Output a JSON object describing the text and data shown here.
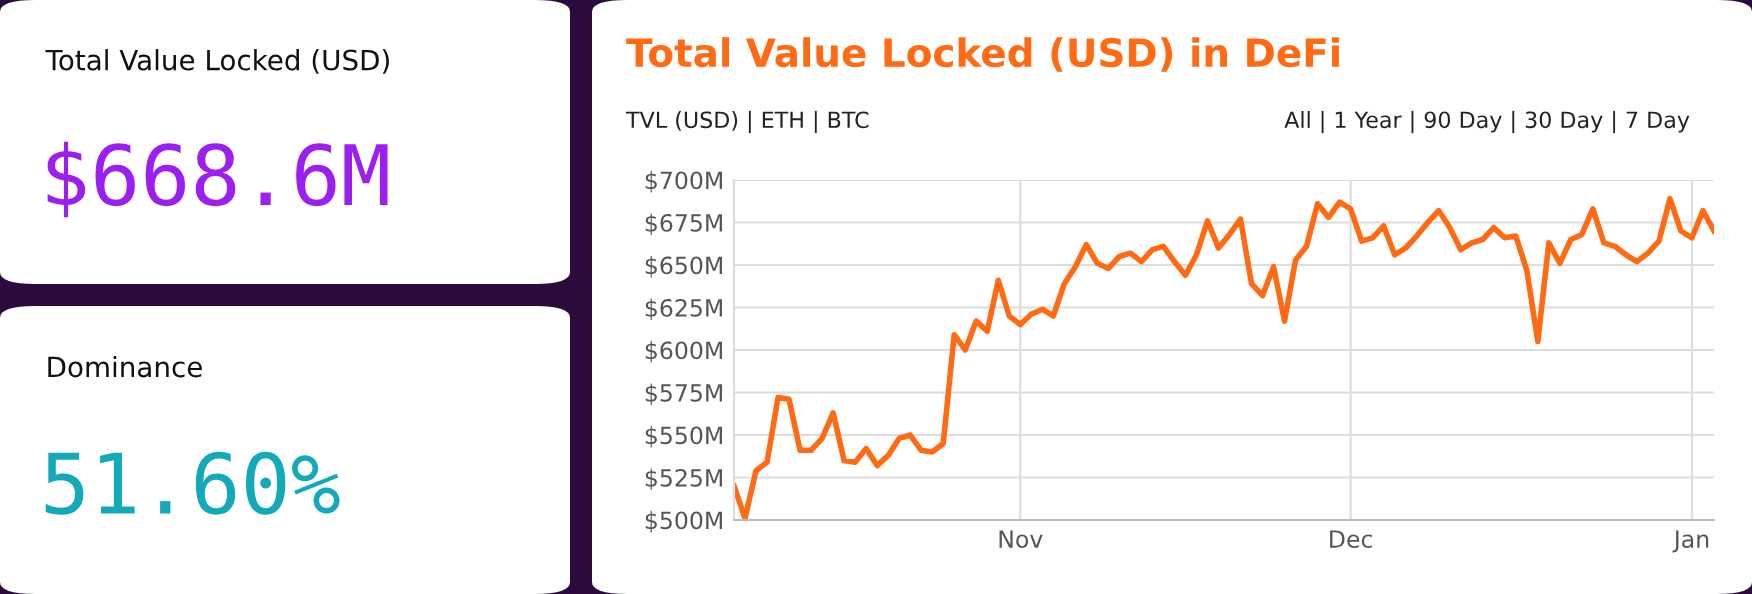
{
  "chart_data": [
    {
      "type": "line",
      "title": "Total Value Locked (USD) in DeFi",
      "annotations": [
        "TVL (USD) | ETH | BTC",
        "All | 1 Year | 90 Day | 30 Day | 7 Day"
      ],
      "categories": [
        null,
        null,
        null,
        null,
        null,
        null,
        null,
        null,
        null,
        null,
        null,
        null,
        null,
        null,
        null,
        null,
        null,
        null,
        null,
        null,
        null,
        null,
        null,
        null,
        null,
        null,
        "Nov",
        null,
        null,
        null,
        null,
        null,
        null,
        null,
        null,
        null,
        null,
        null,
        null,
        null,
        null,
        null,
        null,
        null,
        null,
        null,
        null,
        null,
        null,
        null,
        null,
        null,
        null,
        null,
        null,
        null,
        "Dec",
        null,
        null,
        null,
        null,
        null,
        null,
        null,
        null,
        null,
        null,
        null,
        null,
        null,
        null,
        null,
        null,
        null,
        null,
        null,
        null,
        null,
        null,
        null,
        null,
        null,
        null,
        null,
        null,
        null,
        null,
        "Jan",
        null,
        null
      ],
      "series": [
        {
          "color": "#ff6a13",
          "values": [
            520,
            501,
            529,
            534,
            572,
            571,
            541,
            541,
            548,
            563,
            535,
            534,
            542,
            532,
            538,
            548,
            550,
            541,
            540,
            545,
            609,
            600,
            617,
            611,
            641,
            620,
            615,
            621,
            624,
            620,
            639,
            649,
            662,
            651,
            648,
            655,
            657,
            652,
            659,
            661,
            652,
            644,
            656,
            676,
            660,
            668,
            677,
            639,
            632,
            649,
            617,
            653,
            661,
            686,
            678,
            687,
            683,
            664,
            666,
            673,
            656,
            660,
            667,
            675,
            682,
            672,
            659,
            663,
            665,
            672,
            666,
            667,
            647,
            605,
            663,
            651,
            665,
            668,
            683,
            663,
            661,
            656,
            652,
            657,
            664,
            689,
            670,
            666,
            682,
            670
          ]
        }
      ],
      "ylim": [
        500,
        700
      ],
      "yticks": [
        {
          "value": 500,
          "label": "$500M"
        },
        {
          "value": 525,
          "label": "$525M"
        },
        {
          "value": 550,
          "label": "$550M"
        },
        {
          "value": 575,
          "label": "$575M"
        },
        {
          "value": 600,
          "label": "$600M"
        },
        {
          "value": 625,
          "label": "$625M"
        },
        {
          "value": 650,
          "label": "$650M"
        },
        {
          "value": 675,
          "label": "$675M"
        },
        {
          "value": 700,
          "label": "$700M"
        }
      ],
      "grid": true,
      "marker": "none",
      "line_style": "solid"
    },
    {
      "type": "other",
      "title": "Total Value Locked (USD)",
      "annotations": [
        "$668.6M"
      ]
    },
    {
      "type": "other",
      "title": "Dominance",
      "annotations": [
        "51.60%"
      ]
    }
  ]
}
